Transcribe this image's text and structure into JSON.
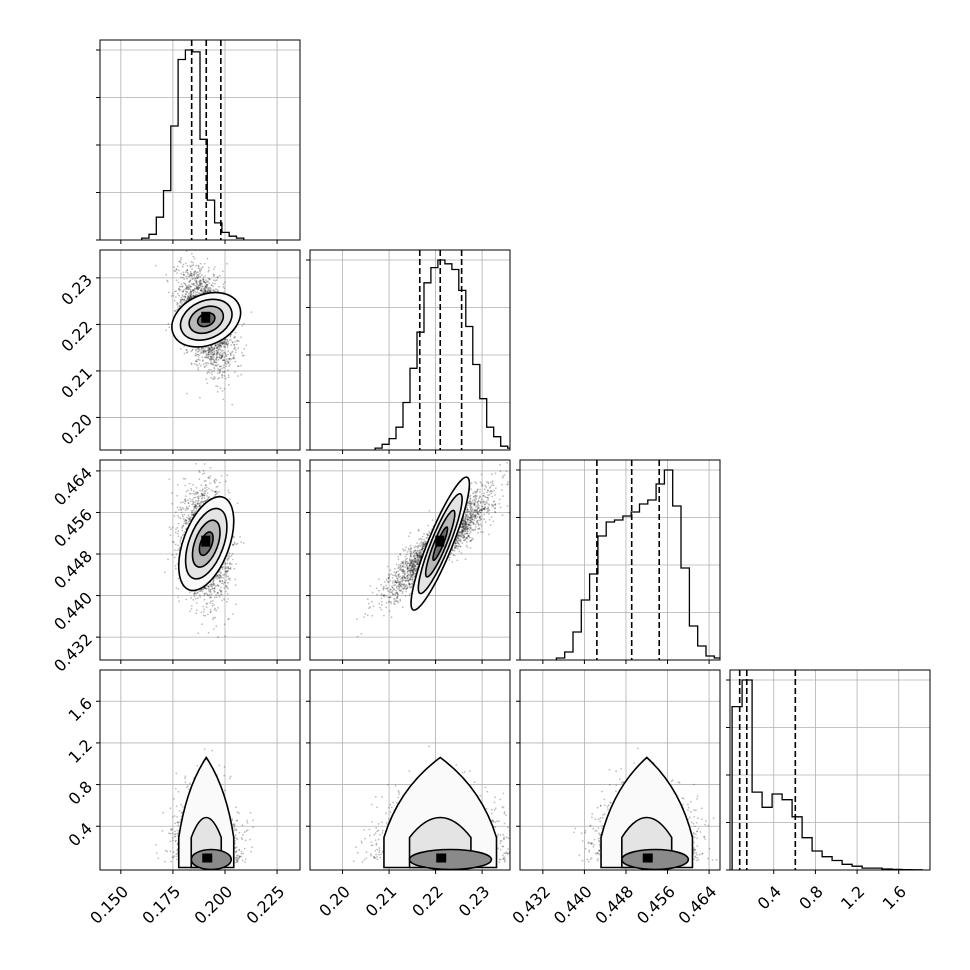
{
  "chart_data": {
    "type": "corner",
    "parameters": [
      {
        "id": "p1",
        "range": [
          0.14,
          0.236
        ],
        "ticks": [
          "0.150",
          "0.175",
          "0.200",
          "0.225"
        ],
        "quantiles": [
          0.184,
          0.191,
          0.198
        ],
        "hist_edges_start": 0.16,
        "hist_bin": 0.0035,
        "hist": [
          0.01,
          0.03,
          0.12,
          0.26,
          0.6,
          0.95,
          1.0,
          0.99,
          0.53,
          0.21,
          0.09,
          0.04,
          0.02,
          0.01
        ]
      },
      {
        "id": "p2",
        "range": [
          0.193,
          0.236
        ],
        "ticks": [
          "0.20",
          "0.21",
          "0.22",
          "0.23"
        ],
        "quantiles": [
          0.2166,
          0.221,
          0.2256
        ],
        "hist_edges_start": 0.207,
        "hist_bin": 0.0015,
        "hist": [
          0.01,
          0.03,
          0.06,
          0.12,
          0.25,
          0.43,
          0.62,
          0.88,
          0.96,
          1.0,
          0.98,
          0.95,
          0.84,
          0.65,
          0.45,
          0.27,
          0.12,
          0.07,
          0.02,
          0.01
        ]
      },
      {
        "id": "p3",
        "range": [
          0.4276,
          0.4661
        ],
        "ticks": [
          "0.432",
          "0.440",
          "0.448",
          "0.456",
          "0.464"
        ],
        "quantiles": [
          0.4424,
          0.4491,
          0.4544
        ],
        "hist_edges_start": 0.4346,
        "hist_bin": 0.0016,
        "hist": [
          0.01,
          0.04,
          0.14,
          0.3,
          0.43,
          0.62,
          0.69,
          0.7,
          0.72,
          0.74,
          0.78,
          0.8,
          0.88,
          0.95,
          0.77,
          0.46,
          0.17,
          0.07,
          0.02,
          0.01
        ]
      },
      {
        "id": "p4",
        "range": [
          -0.02,
          1.9
        ],
        "ticks": [
          "0.4",
          "0.8",
          "1.2",
          "1.6"
        ],
        "quantiles": [
          0.073,
          0.141,
          0.607
        ],
        "hist_edges_start": 0.0,
        "hist_bin": 0.096,
        "hist": [
          0.86,
          1.0,
          0.41,
          0.33,
          0.4,
          0.37,
          0.28,
          0.17,
          0.1,
          0.07,
          0.05,
          0.03,
          0.02,
          0.01,
          0.01,
          0.005,
          0.003,
          0.002,
          0.001
        ]
      }
    ],
    "pairs": [
      {
        "row": 1,
        "col": 0,
        "mean": [
          0.191,
          0.221
        ],
        "sd": [
          0.006,
          0.0052
        ],
        "rho": -0.45
      },
      {
        "row": 2,
        "col": 0,
        "mean": [
          0.191,
          0.45
        ],
        "sd": [
          0.0055,
          0.005
        ],
        "rho": -0.1
      },
      {
        "row": 2,
        "col": 1,
        "mean": [
          0.221,
          0.45
        ],
        "sd": [
          0.0055,
          0.005
        ],
        "rho": 0.9
      },
      {
        "row": 3,
        "col": 0,
        "mean": [
          0.191,
          0.1
        ],
        "sd": [
          0.006,
          0.06
        ],
        "rho": 0.0
      },
      {
        "row": 3,
        "col": 1,
        "mean": [
          0.221,
          0.1
        ],
        "sd": [
          0.0055,
          0.06
        ],
        "rho": 0.0
      },
      {
        "row": 3,
        "col": 2,
        "mean": [
          0.452,
          0.1
        ],
        "sd": [
          0.004,
          0.06
        ],
        "rho": 0.0
      }
    ],
    "grid": true,
    "colors": {
      "line": "#000000",
      "grid": "#b0b0b0",
      "contour_fill": "#f4f4f4"
    }
  }
}
